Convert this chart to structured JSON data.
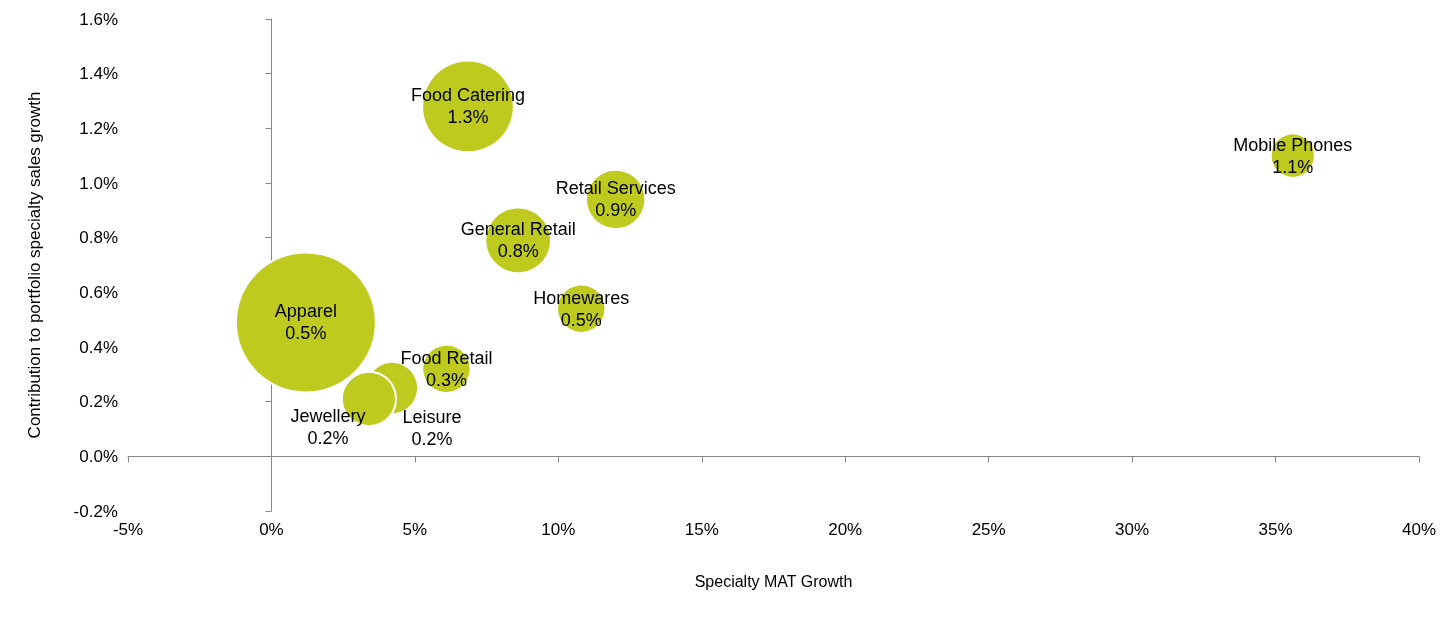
{
  "chart_data": {
    "type": "bubble",
    "xlabel": "Specialty MAT Growth",
    "ylabel": "Contribution to portfolio specialty sales growth",
    "series": [
      {
        "name": "Apparel",
        "color": "#bfca1e",
        "x": [
          1.2
        ],
        "values": [
          0.49
        ],
        "sizes": [
          1
        ],
        "value_labels": [
          "0.5%"
        ]
      },
      {
        "name": "Food Catering",
        "color": "#bfca1e",
        "x": [
          6.85
        ],
        "values": [
          1.28
        ],
        "sizes": [
          0.43
        ],
        "value_labels": [
          "1.3%"
        ]
      },
      {
        "name": "Mobile Phones",
        "color": "#bfca1e",
        "x": [
          35.6
        ],
        "values": [
          1.1
        ],
        "sizes": [
          0.1
        ],
        "value_labels": [
          "1.1%"
        ]
      },
      {
        "name": "Retail Services",
        "color": "#bfca1e",
        "x": [
          12.0
        ],
        "values": [
          0.94
        ],
        "sizes": [
          0.18
        ],
        "value_labels": [
          "0.9%"
        ]
      },
      {
        "name": "General Retail",
        "color": "#bfca1e",
        "x": [
          8.6
        ],
        "values": [
          0.79
        ],
        "sizes": [
          0.22
        ],
        "value_labels": [
          "0.8%"
        ]
      },
      {
        "name": "Homewares",
        "color": "#bfca1e",
        "x": [
          10.8
        ],
        "values": [
          0.54
        ],
        "sizes": [
          0.12
        ],
        "value_labels": [
          "0.5%"
        ]
      },
      {
        "name": "Food Retail",
        "color": "#bfca1e",
        "x": [
          6.1
        ],
        "values": [
          0.32
        ],
        "sizes": [
          0.12
        ],
        "value_labels": [
          "0.3%"
        ]
      },
      {
        "name": "Leisure",
        "color": "#bfca1e",
        "x": [
          4.2
        ],
        "values": [
          0.25
        ],
        "sizes": [
          0.14
        ],
        "value_labels": [
          "0.2%"
        ]
      },
      {
        "name": "Jewellery",
        "color": "#bfca1e",
        "x": [
          3.4
        ],
        "values": [
          0.21
        ],
        "sizes": [
          0.15
        ],
        "value_labels": [
          "0.2%"
        ]
      }
    ],
    "xlim": [
      -5,
      40
    ],
    "xticks": [
      {
        "value": -5,
        "label": "-5%"
      },
      {
        "value": 0,
        "label": "0%"
      },
      {
        "value": 5,
        "label": "5%"
      },
      {
        "value": 10,
        "label": "10%"
      },
      {
        "value": 15,
        "label": "15%"
      },
      {
        "value": 20,
        "label": "20%"
      },
      {
        "value": 25,
        "label": "25%"
      },
      {
        "value": 30,
        "label": "30%"
      },
      {
        "value": 35,
        "label": "35%"
      },
      {
        "value": 40,
        "label": "40%"
      }
    ],
    "ylim": [
      -0.2,
      1.6
    ],
    "yticks": [
      {
        "value": -0.2,
        "label": "-0.2%"
      },
      {
        "value": 0,
        "label": "0.0%"
      },
      {
        "value": 0.2,
        "label": "0.2%"
      },
      {
        "value": 0.4,
        "label": "0.4%"
      },
      {
        "value": 0.6,
        "label": "0.6%"
      },
      {
        "value": 0.8,
        "label": "0.8%"
      },
      {
        "value": 1.0,
        "label": "1.0%"
      },
      {
        "value": 1.2,
        "label": "1.2%"
      },
      {
        "value": 1.4,
        "label": "1.4%"
      },
      {
        "value": 1.6,
        "label": "1.6%"
      }
    ],
    "legend": false
  }
}
